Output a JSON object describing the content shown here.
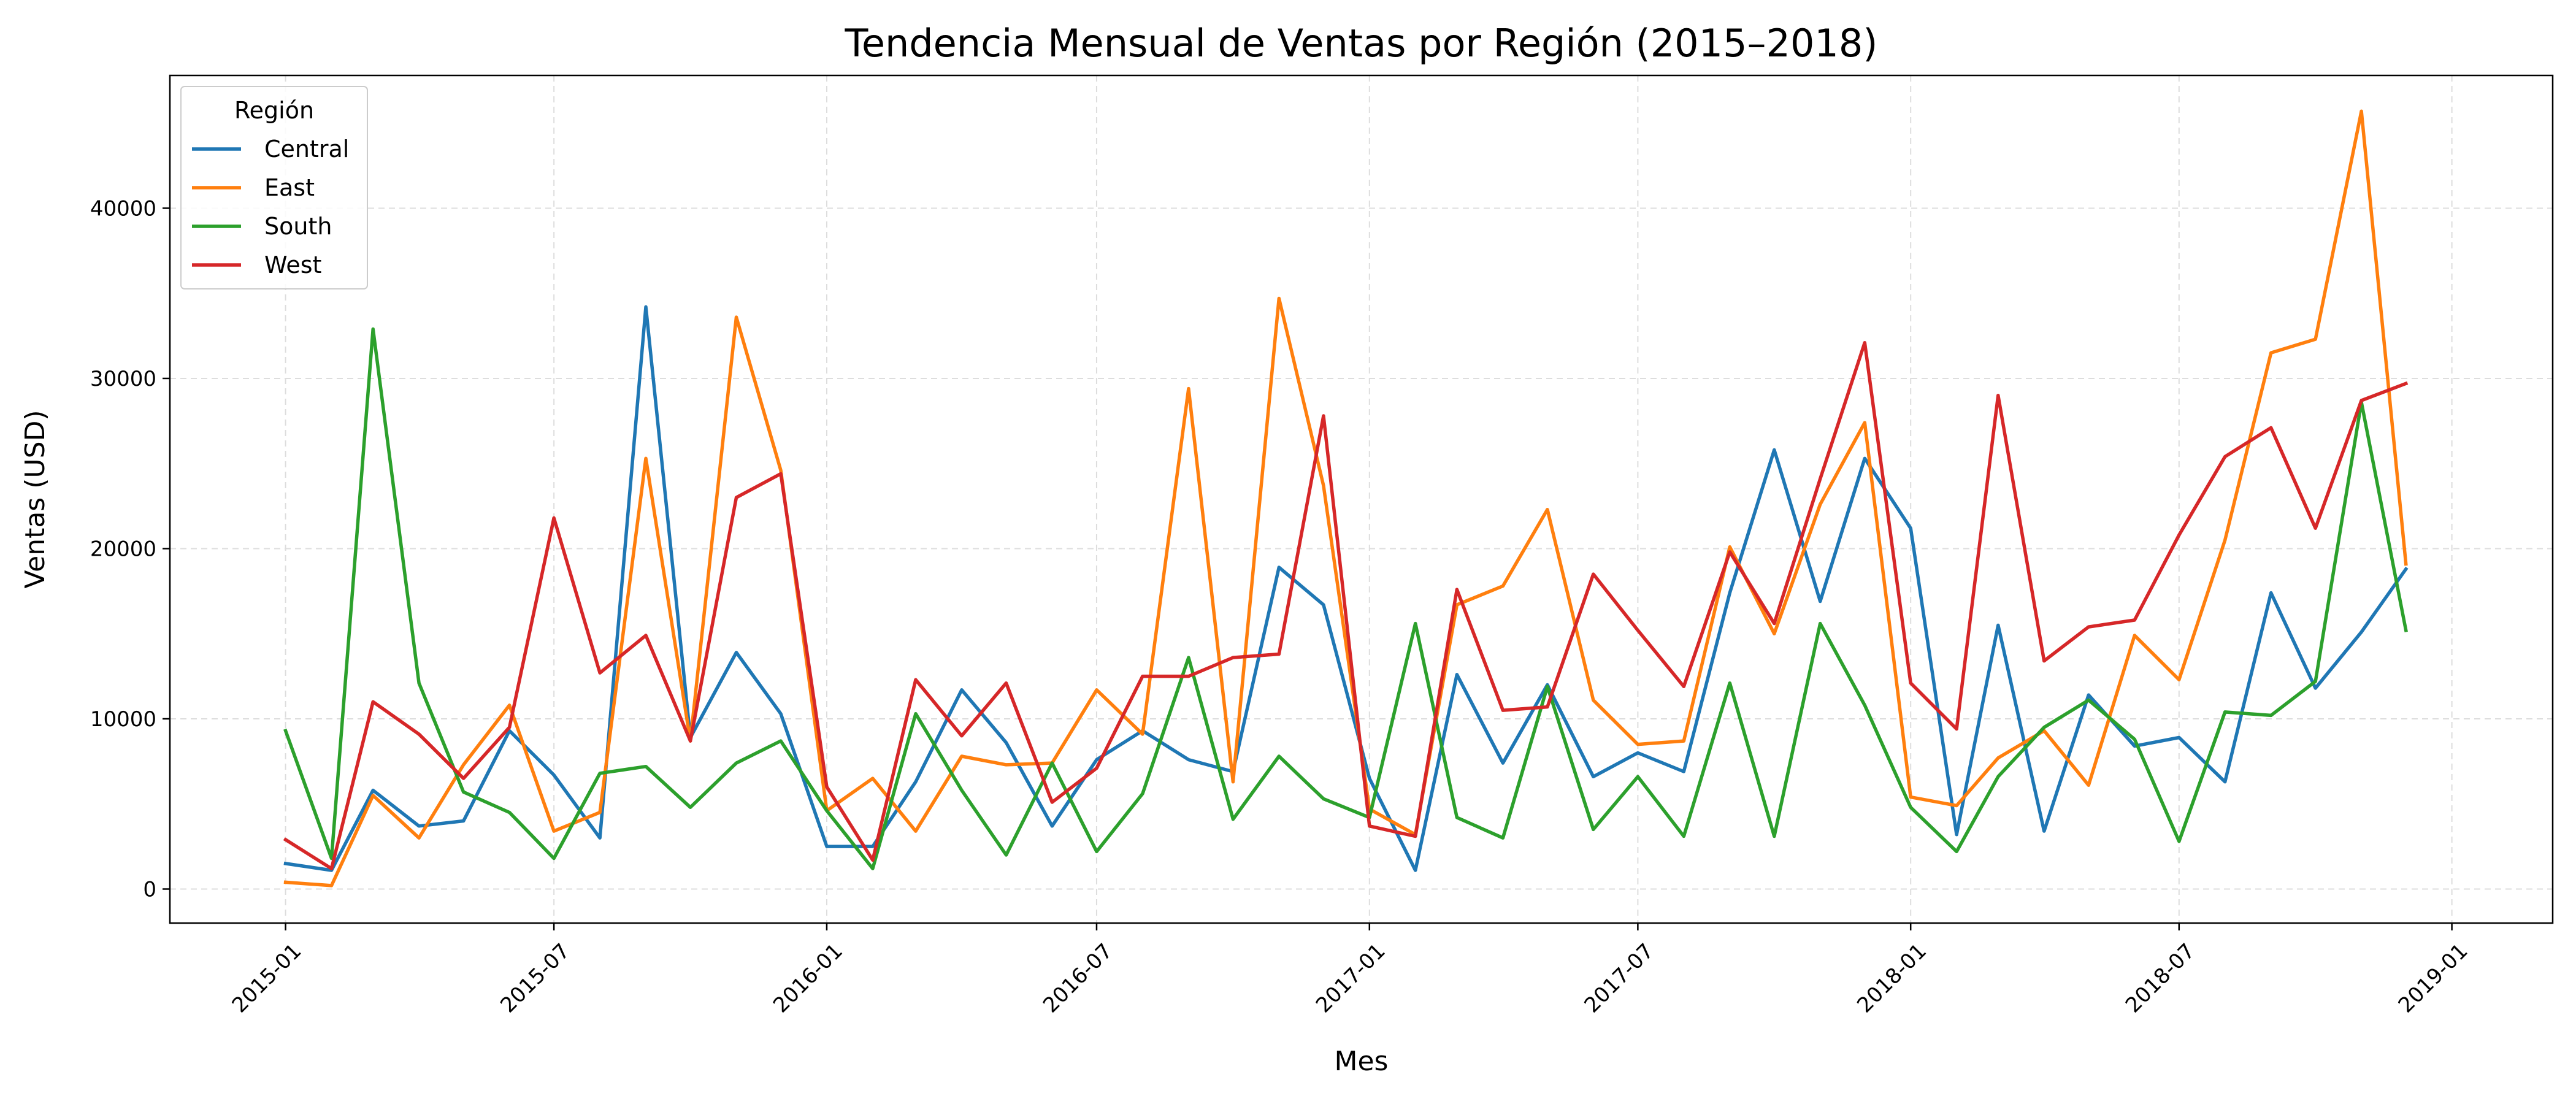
{
  "chart_data": {
    "type": "line",
    "title": "Tendencia Mensual de Ventas por Región (2015–2018)",
    "xlabel": "Mes",
    "ylabel": "Ventas (USD)",
    "x_range": [
      "2014-10-15",
      "2019-03-10"
    ],
    "ylim": [
      -2000,
      47800
    ],
    "x_ticks": [
      "2015-01",
      "2015-07",
      "2016-01",
      "2016-07",
      "2017-01",
      "2017-07",
      "2018-01",
      "2018-07",
      "2019-01"
    ],
    "y_ticks": [
      0,
      10000,
      20000,
      30000,
      40000
    ],
    "grid": true,
    "legend": {
      "title": "Región",
      "position": "top-left"
    },
    "months": [
      "2015-01",
      "2015-02",
      "2015-03",
      "2015-04",
      "2015-05",
      "2015-06",
      "2015-07",
      "2015-08",
      "2015-09",
      "2015-10",
      "2015-11",
      "2015-12",
      "2016-01",
      "2016-02",
      "2016-03",
      "2016-04",
      "2016-05",
      "2016-06",
      "2016-07",
      "2016-08",
      "2016-09",
      "2016-10",
      "2016-11",
      "2016-12",
      "2017-01",
      "2017-02",
      "2017-03",
      "2017-04",
      "2017-05",
      "2017-06",
      "2017-07",
      "2017-08",
      "2017-09",
      "2017-10",
      "2017-11",
      "2017-12",
      "2018-01",
      "2018-02",
      "2018-03",
      "2018-04",
      "2018-05",
      "2018-06",
      "2018-07",
      "2018-08",
      "2018-09",
      "2018-10",
      "2018-11",
      "2018-12"
    ],
    "series": [
      {
        "name": "Central",
        "color": "#1f77b4",
        "values": [
          1500,
          1100,
          5800,
          3700,
          4000,
          9300,
          6700,
          3000,
          34200,
          8900,
          13900,
          10300,
          2500,
          2500,
          6300,
          11700,
          8600,
          3700,
          7600,
          9300,
          7600,
          6900,
          18900,
          16700,
          6500,
          1100,
          12600,
          7400,
          12000,
          6600,
          8000,
          6900,
          17400,
          25800,
          16900,
          25300,
          21200,
          3200,
          15500,
          3400,
          11400,
          8400,
          8900,
          6300,
          17400,
          11800,
          15100,
          18800
        ]
      },
      {
        "name": "East",
        "color": "#ff7f0e",
        "values": [
          400,
          200,
          5500,
          3000,
          7300,
          10800,
          3400,
          4500,
          25300,
          8700,
          33600,
          24600,
          4600,
          6500,
          3400,
          7800,
          7300,
          7400,
          11700,
          9100,
          29400,
          6300,
          34700,
          23700,
          4700,
          3200,
          16700,
          17800,
          22300,
          11100,
          8500,
          8700,
          20100,
          15000,
          22600,
          27400,
          5400,
          4900,
          7700,
          9300,
          6100,
          14900,
          12300,
          20500,
          31500,
          32300,
          45700,
          19100
        ]
      },
      {
        "name": "South",
        "color": "#2ca02c",
        "values": [
          9300,
          1800,
          32900,
          12100,
          5700,
          4500,
          1800,
          6800,
          7200,
          4800,
          7400,
          8700,
          4600,
          1200,
          10300,
          5800,
          2000,
          7400,
          2200,
          5600,
          13600,
          4100,
          7800,
          5300,
          4200,
          15600,
          4200,
          3000,
          11900,
          3500,
          6600,
          3100,
          12100,
          3100,
          15600,
          10800,
          4800,
          2200,
          6600,
          9500,
          11100,
          8800,
          2800,
          10400,
          10200,
          12200,
          28600,
          15200
        ]
      },
      {
        "name": "West",
        "color": "#d62728",
        "values": [
          2900,
          1200,
          11000,
          9100,
          6500,
          9500,
          21800,
          12700,
          14900,
          8700,
          23000,
          24400,
          6000,
          1700,
          12300,
          9000,
          12100,
          5100,
          7100,
          12500,
          12500,
          13600,
          13800,
          27800,
          3700,
          3100,
          17600,
          10500,
          10700,
          18500,
          15200,
          11900,
          19800,
          15600,
          24100,
          32100,
          12100,
          9400,
          29000,
          13400,
          15400,
          15800,
          20800,
          25400,
          27100,
          21200,
          28700,
          29700
        ]
      }
    ]
  }
}
